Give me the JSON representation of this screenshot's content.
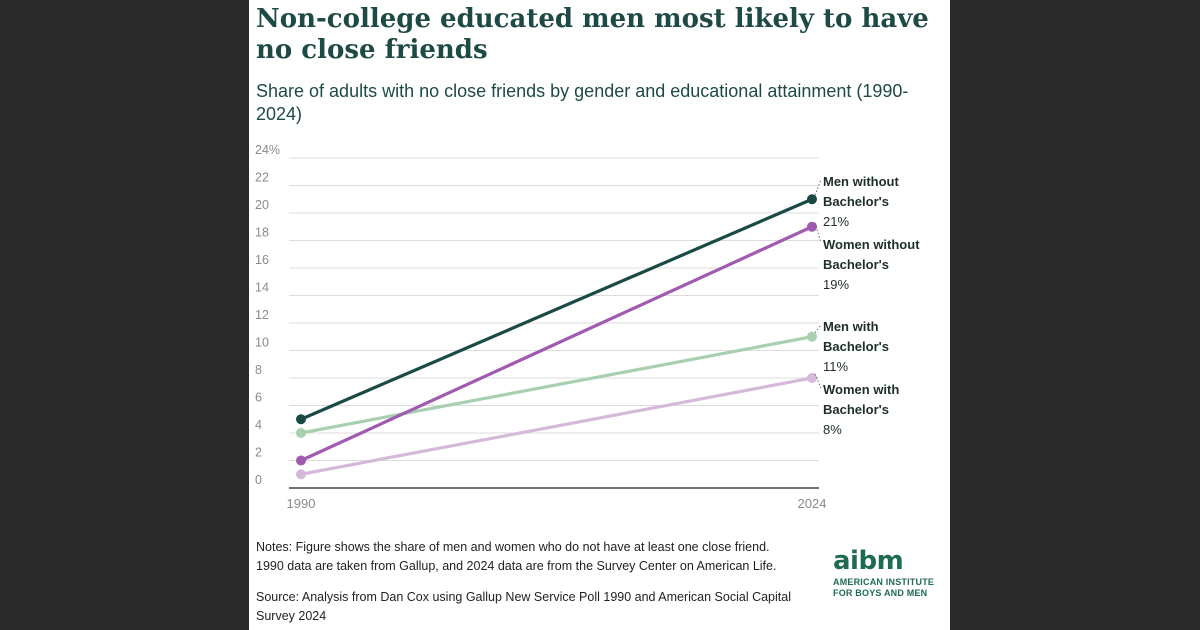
{
  "title": "Non-college educated men most likely to have no close friends",
  "subtitle": "Share of adults with no close friends by gender and educational attainment (1990-2024)",
  "chart_data": {
    "type": "line",
    "x": [
      "1990",
      "2024"
    ],
    "ylim": [
      0,
      24
    ],
    "yticks": [
      "24%",
      "22",
      "20",
      "18",
      "16",
      "14",
      "12",
      "10",
      "8",
      "6",
      "4",
      "2",
      "0"
    ],
    "grid": true,
    "series": [
      {
        "name_lines": [
          "Men without",
          "Bachelor's"
        ],
        "label_value": "21%",
        "values": [
          5,
          21
        ],
        "color": "#1a4a45"
      },
      {
        "name_lines": [
          "Women without",
          "Bachelor's"
        ],
        "label_value": "19%",
        "values": [
          2,
          19
        ],
        "color": "#a05ab0"
      },
      {
        "name_lines": [
          "Men with",
          "Bachelor's"
        ],
        "label_value": "11%",
        "values": [
          4,
          11
        ],
        "color": "#a8cfb0"
      },
      {
        "name_lines": [
          "Women with",
          "Bachelor's"
        ],
        "label_value": "8%",
        "values": [
          1,
          8
        ],
        "color": "#d5b9d8"
      }
    ]
  },
  "notes": {
    "line1": "Notes: Figure shows the share of men and women who do not have at least one close friend.",
    "line2": "1990 data are taken from Gallup, and 2024 data are from the Survey Center on American Life.",
    "source": "Source: Analysis from Dan Cox using Gallup New Service Poll 1990 and American Social Capital Survey 2024"
  },
  "logo": {
    "word": "aibm",
    "line1": "AMERICAN INSTITUTE",
    "line2": "FOR BOYS AND MEN"
  }
}
